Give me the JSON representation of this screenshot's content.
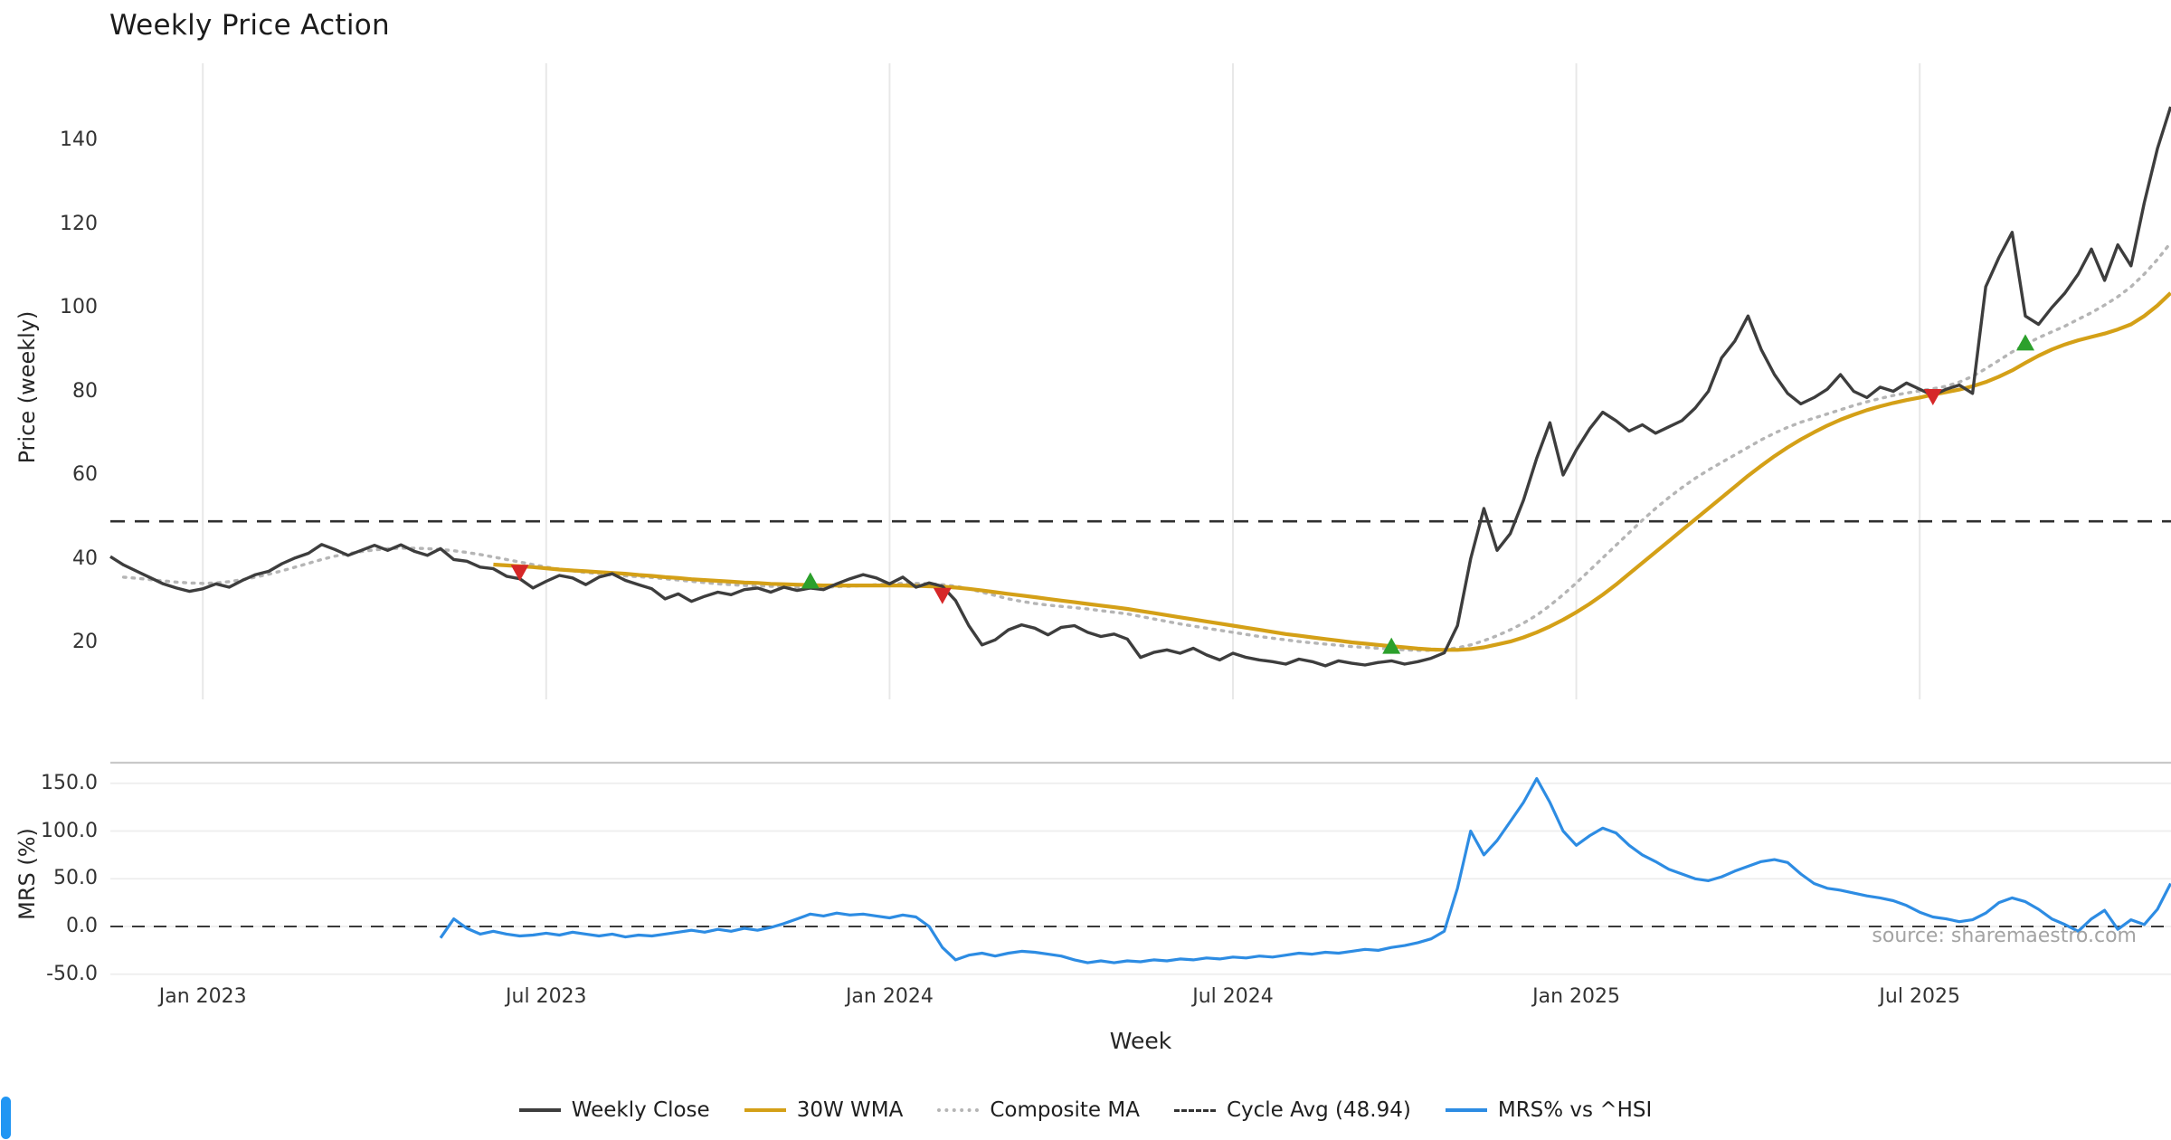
{
  "title": "Weekly Price Action",
  "source_note": "source: sharemaestro.com",
  "axes": {
    "price_label": "Price (weekly)",
    "mrs_label": "MRS (%)",
    "x_label": "Week"
  },
  "legend": {
    "items": [
      {
        "label": "Weekly Close",
        "style": "solid",
        "color": "#3d3d3d"
      },
      {
        "label": "30W WMA",
        "style": "solid",
        "color": "#d4a017"
      },
      {
        "label": "Composite MA",
        "style": "dotted",
        "color": "#b5b5b5"
      },
      {
        "label": "Cycle Avg (48.94)",
        "style": "dashed",
        "color": "#333333"
      },
      {
        "label": "MRS% vs ^HSI",
        "style": "solid",
        "color": "#2d8ce3"
      }
    ]
  },
  "chart_data": [
    {
      "type": "line",
      "panel": "price",
      "title": "Weekly Price Action",
      "ylabel": "Price (weekly)",
      "xlabel": "Week",
      "grid": "vertical",
      "ylim": [
        6,
        158
      ],
      "y_ticks": [
        20,
        40,
        60,
        80,
        100,
        120,
        140
      ],
      "x_range_weeks": [
        0,
        156
      ],
      "x_ticks": [
        {
          "label": "Jan 2023",
          "week": 7
        },
        {
          "label": "Jul 2023",
          "week": 33
        },
        {
          "label": "Jan 2024",
          "week": 59
        },
        {
          "label": "Jul 2024",
          "week": 85
        },
        {
          "label": "Jan 2025",
          "week": 111
        },
        {
          "label": "Jul 2025",
          "week": 137
        }
      ],
      "cycle_avg": 48.94,
      "series": [
        {
          "name": "Weekly Close",
          "color": "#3d3d3d",
          "line_style": "solid",
          "start_week": 0,
          "values": [
            40.5,
            38.5,
            37,
            35.5,
            34,
            33,
            32.2,
            32.8,
            34,
            33.2,
            34.8,
            36.2,
            37,
            38.8,
            40.2,
            41.3,
            43.4,
            42.2,
            40.8,
            42,
            43.2,
            42,
            43.3,
            41.8,
            40.8,
            42.4,
            39.8,
            39.4,
            38,
            37.6,
            35.8,
            35.2,
            33,
            34.6,
            36,
            35.4,
            33.8,
            35.6,
            36.4,
            34.8,
            33.8,
            32.8,
            30.4,
            31.6,
            29.8,
            31,
            32,
            31.4,
            32.6,
            33,
            32,
            33.2,
            32.4,
            33,
            32.6,
            34,
            35.2,
            36.2,
            35.4,
            34,
            35.6,
            33.2,
            34.2,
            33.4,
            30,
            24,
            19.4,
            20.6,
            23,
            24.2,
            23.4,
            21.8,
            23.6,
            24,
            22.4,
            21.4,
            22,
            20.8,
            16.4,
            17.6,
            18.2,
            17.4,
            18.6,
            17,
            15.8,
            17.4,
            16.4,
            15.8,
            15.4,
            14.8,
            16,
            15.4,
            14.4,
            15.6,
            15,
            14.6,
            15.2,
            15.6,
            14.8,
            15.4,
            16.2,
            17.5,
            24,
            40,
            52,
            42,
            46,
            54,
            64,
            72.5,
            60,
            66,
            71,
            75,
            73,
            70.5,
            72,
            70,
            71.5,
            73,
            76,
            80,
            88,
            92,
            98,
            90,
            84,
            79.5,
            77,
            78.5,
            80.5,
            84,
            80,
            78.5,
            81,
            80,
            82,
            80.5,
            79,
            80.5,
            81.5,
            79.5,
            105,
            112,
            118,
            98,
            96,
            100,
            103.5,
            108,
            114,
            106.5,
            115,
            110,
            125,
            138,
            148
          ]
        },
        {
          "name": "30W WMA",
          "color": "#d4a017",
          "line_style": "solid",
          "start_week": 29,
          "values": [
            38.6,
            38.4,
            38.2,
            38,
            37.7,
            37.4,
            37.2,
            37,
            36.8,
            36.6,
            36.4,
            36.1,
            35.9,
            35.6,
            35.4,
            35.1,
            34.9,
            34.7,
            34.5,
            34.3,
            34.2,
            34,
            33.9,
            33.8,
            33.7,
            33.6,
            33.6,
            33.6,
            33.6,
            33.6,
            33.6,
            33.6,
            33.5,
            33.4,
            33.3,
            33.1,
            32.8,
            32.4,
            32,
            31.6,
            31.2,
            30.8,
            30.4,
            30,
            29.6,
            29.2,
            28.8,
            28.4,
            28,
            27.5,
            27,
            26.5,
            26,
            25.5,
            25,
            24.5,
            24,
            23.5,
            23,
            22.5,
            22,
            21.6,
            21.2,
            20.8,
            20.4,
            20,
            19.7,
            19.4,
            19.1,
            18.8,
            18.5,
            18.3,
            18.2,
            18.2,
            18.4,
            18.8,
            19.5,
            20.2,
            21.2,
            22.4,
            23.8,
            25.4,
            27.2,
            29.2,
            31.4,
            33.8,
            36.4,
            39,
            41.6,
            44.2,
            46.8,
            49.4,
            52,
            54.6,
            57.2,
            59.8,
            62.2,
            64.5,
            66.6,
            68.5,
            70.2,
            71.8,
            73.2,
            74.4,
            75.5,
            76.4,
            77.2,
            77.9,
            78.5,
            79.2,
            79.8,
            80.4,
            81.2,
            82.2,
            83.5,
            85,
            86.8,
            88.5,
            90,
            91.2,
            92.2,
            93,
            93.8,
            94.8,
            96,
            98,
            100.5,
            103.5
          ]
        },
        {
          "name": "Composite MA",
          "color": "#b5b5b5",
          "line_style": "dotted",
          "start_week": 1,
          "values": [
            35.6,
            35.3,
            35,
            34.7,
            34.4,
            34.2,
            34.1,
            34.2,
            34.5,
            35,
            35.6,
            36.3,
            37.1,
            38,
            38.9,
            39.8,
            40.6,
            41.2,
            41.7,
            42.1,
            42.4,
            42.5,
            42.5,
            42.4,
            42.2,
            41.9,
            41.5,
            41,
            40.4,
            39.8,
            39.2,
            38.6,
            38,
            37.5,
            37.1,
            36.7,
            36.4,
            36.1,
            35.9,
            35.7,
            35.5,
            35.2,
            34.9,
            34.6,
            34.3,
            34,
            33.8,
            33.6,
            33.5,
            33.4,
            33.3,
            33.2,
            33.2,
            33.2,
            33.3,
            33.4,
            33.6,
            33.8,
            34,
            34.1,
            34.1,
            34,
            33.8,
            33.4,
            32.8,
            32,
            31.2,
            30.4,
            29.8,
            29.3,
            28.9,
            28.6,
            28.3,
            28,
            27.6,
            27.2,
            26.8,
            26.2,
            25.6,
            25,
            24.4,
            23.9,
            23.4,
            22.9,
            22.4,
            21.9,
            21.4,
            21,
            20.6,
            20.2,
            19.9,
            19.6,
            19.3,
            19,
            18.8,
            18.6,
            18.4,
            18.2,
            18.1,
            18.1,
            18.3,
            18.7,
            19.4,
            20.4,
            21.6,
            23,
            24.6,
            26.5,
            28.8,
            31.4,
            34.2,
            37.2,
            40.2,
            43.2,
            46.2,
            49.2,
            52,
            54.6,
            57,
            59.2,
            61.2,
            63,
            64.8,
            66.6,
            68.4,
            70,
            71.4,
            72.6,
            73.6,
            74.6,
            75.6,
            76.6,
            77.5,
            78.3,
            79,
            79.6,
            80.1,
            80.6,
            81.2,
            82.2,
            83.6,
            85.4,
            87.4,
            89.4,
            91.2,
            92.8,
            94.2,
            95.6,
            97.2,
            98.8,
            100.6,
            102.6,
            105,
            108,
            111.5,
            115.5
          ]
        }
      ],
      "signals": {
        "sell": {
          "color": "#d62728",
          "marker": "triangle-down",
          "points": [
            {
              "week": 31,
              "price": 36.8
            },
            {
              "week": 63,
              "price": 31.3
            },
            {
              "week": 138,
              "price": 78.8
            }
          ]
        },
        "buy": {
          "color": "#2ca02c",
          "marker": "triangle-up",
          "points": [
            {
              "week": 53,
              "price": 34.6
            },
            {
              "week": 97,
              "price": 19
            },
            {
              "week": 145,
              "price": 91.5
            }
          ]
        }
      }
    },
    {
      "type": "line",
      "panel": "mrs",
      "ylabel": "MRS (%)",
      "grid": "horizontal",
      "ylim": [
        -63,
        171
      ],
      "y_ticks": [
        {
          "label": "-50.0",
          "value": -50
        },
        {
          "label": "0.0",
          "value": 0
        },
        {
          "label": "50.0",
          "value": 50
        },
        {
          "label": "100.0",
          "value": 100
        },
        {
          "label": "150.0",
          "value": 150
        }
      ],
      "zero_dash_line": 0,
      "series": [
        {
          "name": "MRS% vs ^HSI",
          "color": "#2d8ce3",
          "line_style": "solid",
          "start_week": 25,
          "values": [
            -12,
            8,
            -2,
            -8,
            -5,
            -8,
            -10,
            -9,
            -7,
            -9,
            -6,
            -8,
            -10,
            -8,
            -11,
            -9,
            -10,
            -8,
            -6,
            -4,
            -6,
            -3,
            -5,
            -2,
            -4,
            -1,
            3,
            8,
            13,
            11,
            14,
            12,
            13,
            11,
            9,
            12,
            10,
            0,
            -22,
            -35,
            -30,
            -28,
            -31,
            -28,
            -26,
            -27,
            -29,
            -31,
            -35,
            -38,
            -36,
            -38,
            -36,
            -37,
            -35,
            -36,
            -34,
            -35,
            -33,
            -34,
            -32,
            -33,
            -31,
            -32,
            -30,
            -28,
            -29,
            -27,
            -28,
            -26,
            -24,
            -25,
            -22,
            -20,
            -17,
            -13,
            -5,
            40,
            100,
            75,
            90,
            110,
            130,
            155,
            130,
            100,
            85,
            95,
            103,
            98,
            85,
            75,
            68,
            60,
            55,
            50,
            48,
            52,
            58,
            63,
            68,
            70,
            67,
            55,
            45,
            40,
            38,
            35,
            32,
            30,
            27,
            22,
            15,
            10,
            8,
            5,
            7,
            14,
            25,
            30,
            26,
            18,
            8,
            2,
            -5,
            8,
            17,
            -3,
            7,
            2,
            18,
            45
          ]
        }
      ]
    }
  ]
}
